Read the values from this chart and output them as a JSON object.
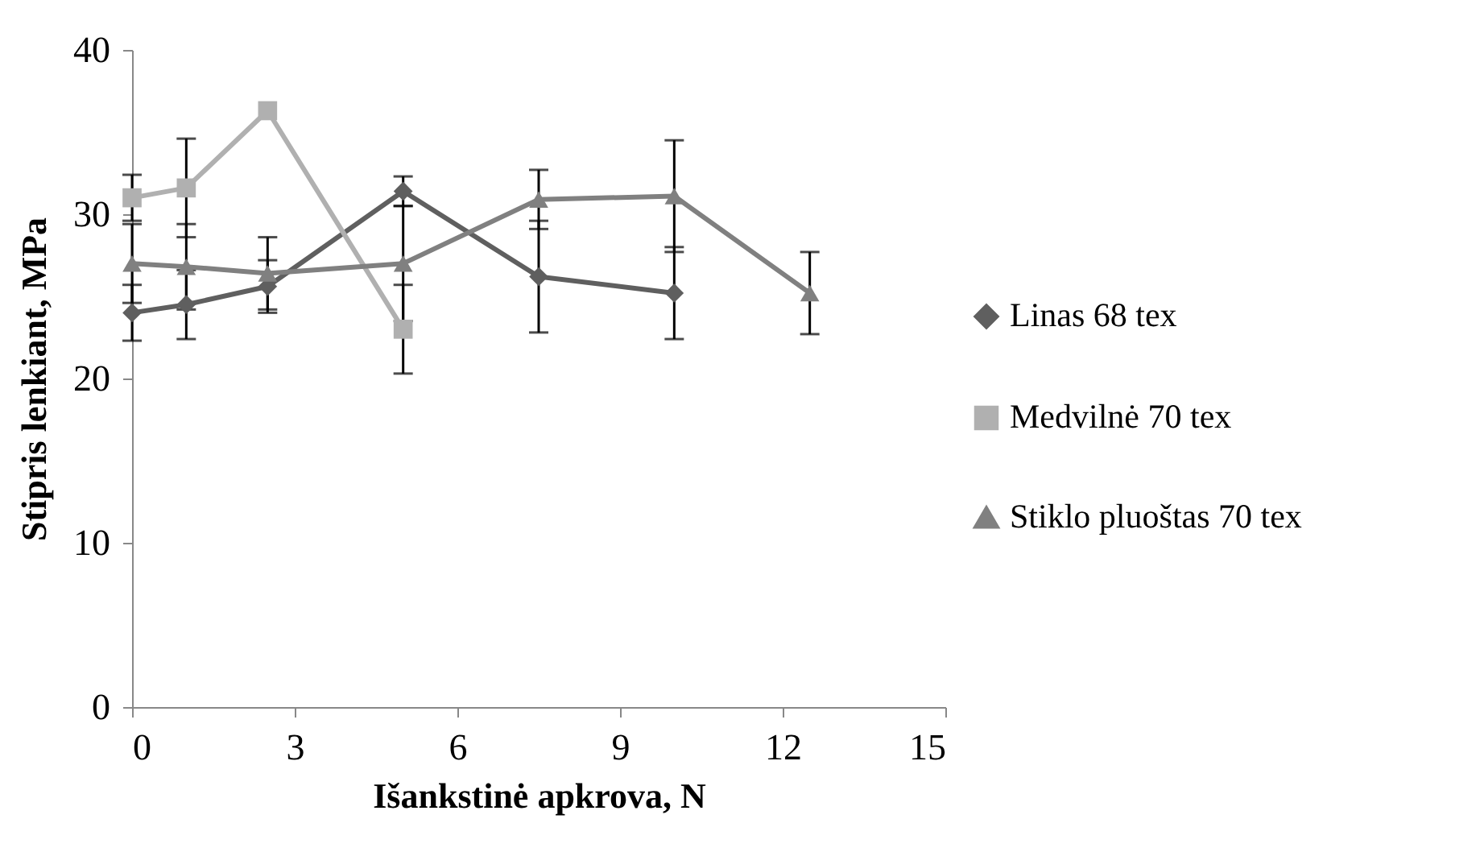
{
  "chart_data": {
    "type": "line",
    "xlabel": "Išankstinė apkrova, N",
    "ylabel": "Stipris lenkiant, MPa",
    "xlim": [
      0,
      15
    ],
    "xticks": [
      0,
      3,
      6,
      9,
      12,
      15
    ],
    "ylim": [
      0,
      40
    ],
    "yticks": [
      0,
      10,
      20,
      30,
      40
    ],
    "grid": false,
    "legend": "right",
    "series": [
      {
        "name": "Linas 68 tex",
        "color": "#5f5f5f",
        "marker": "diamond",
        "x": [
          0,
          1,
          2.5,
          5,
          7.5,
          10
        ],
        "values": [
          24,
          24.5,
          25.6,
          31.4,
          26.2,
          25.2
        ],
        "errors": [
          1.7,
          2.1,
          1.6,
          0.9,
          3.4,
          2.8
        ]
      },
      {
        "name": "Medvilnė 70 tex",
        "color": "#b0b0b0",
        "marker": "square",
        "x": [
          0,
          1,
          2.5,
          5
        ],
        "values": [
          31,
          31.6,
          36.3,
          23
        ],
        "errors": [
          1.4,
          3,
          null,
          2.7
        ]
      },
      {
        "name": "Stiklo pluoštas 70 tex",
        "color": "#808080",
        "marker": "triangle",
        "x": [
          0,
          1,
          2.5,
          5,
          7.5,
          10,
          12.5
        ],
        "values": [
          27,
          26.8,
          26.4,
          27,
          30.9,
          31.1,
          25.2
        ],
        "errors": [
          2.4,
          2.6,
          2.2,
          3.5,
          1.8,
          3.4,
          2.5
        ]
      }
    ]
  }
}
